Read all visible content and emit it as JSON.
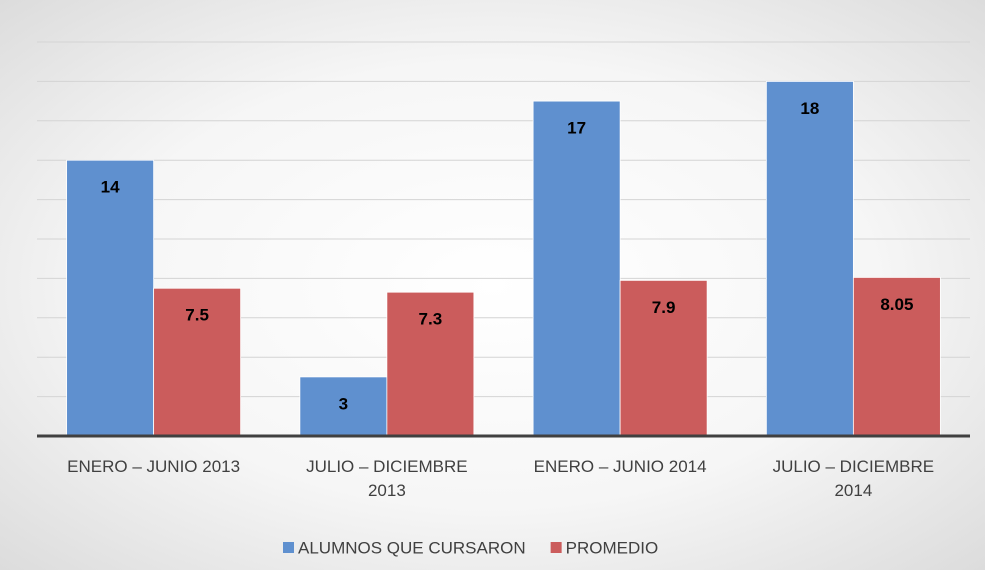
{
  "chart_data": {
    "type": "bar",
    "categories": [
      "ENERO – JUNIO 2013",
      "JULIO – DICIEMBRE 2013",
      "ENERO – JUNIO 2014",
      "JULIO – DICIEMBRE 2014"
    ],
    "series": [
      {
        "name": "ALUMNOS QUE CURSARON",
        "color": "#5f90cf",
        "values": [
          14,
          3,
          17,
          18
        ]
      },
      {
        "name": "PROMEDIO",
        "color": "#cb5c5c",
        "values": [
          7.5,
          7.3,
          7.9,
          8.05
        ]
      }
    ],
    "ylim": [
      0,
      20
    ],
    "yticks": [
      0,
      2,
      4,
      6,
      8,
      10,
      12,
      14,
      16,
      18,
      20
    ],
    "grid": true,
    "legend": "bottom"
  }
}
